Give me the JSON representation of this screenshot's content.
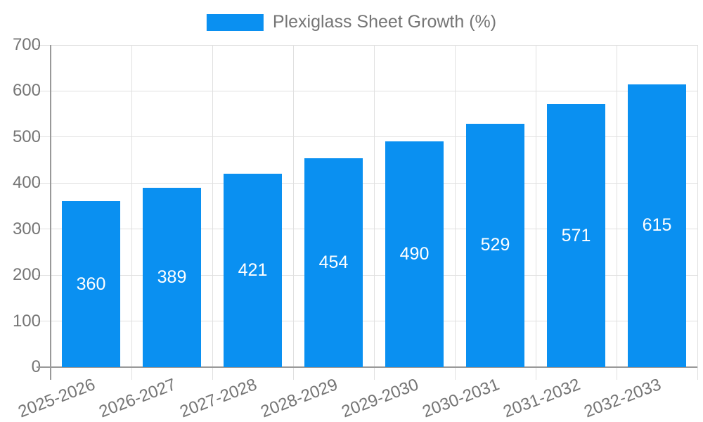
{
  "chart_data": {
    "type": "bar",
    "title": "Plexiglass Sheet Growth (%)",
    "legend": {
      "label": "Plexiglass Sheet Growth (%)",
      "position": "top-center"
    },
    "categories": [
      "2025-2026",
      "2026-2027",
      "2027-2028",
      "2028-2029",
      "2029-2030",
      "2030-2031",
      "2031-2032",
      "2032-2033"
    ],
    "series": [
      {
        "name": "Plexiglass Sheet Growth (%)",
        "values": [
          360,
          389,
          421,
          454,
          490,
          529,
          571,
          615
        ]
      }
    ],
    "xlabel": "",
    "ylabel": "",
    "ylim": [
      0,
      700
    ],
    "y_ticks": [
      0,
      100,
      200,
      300,
      400,
      500,
      600,
      700
    ],
    "grid": true,
    "bar_value_labels": "inside-center",
    "x_label_rotation_deg": -21,
    "colors": {
      "bar": "#0a90f1",
      "bar_label": "#ffffff",
      "tick_text": "#757575",
      "grid_line": "#e0e0e0",
      "axis_line": "#999999",
      "background": "#ffffff"
    }
  }
}
